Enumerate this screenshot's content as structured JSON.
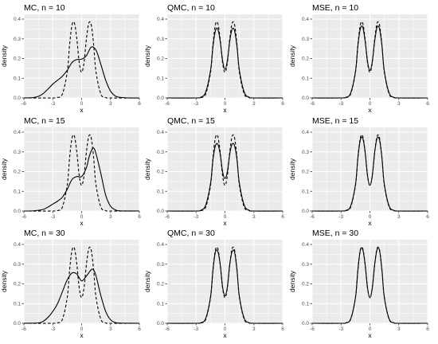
{
  "figure": {
    "background_color": "#ffffff",
    "panel_color": "#ebebeb",
    "grid_color": "#ffffff",
    "line_color": "#000000"
  },
  "chart_data": [
    {
      "type": "line",
      "title": "MC, n = 10",
      "xlabel": "x",
      "ylabel": "density",
      "xlim": [
        -6,
        6
      ],
      "ylim": [
        0,
        0.4
      ],
      "x_ticks": [
        -6,
        -3,
        0,
        3,
        6
      ],
      "y_ticks": [
        0.0,
        0.1,
        0.2,
        0.3,
        0.4
      ],
      "grid": true,
      "series": [
        {
          "style": "solid",
          "x": [
            -6,
            -5,
            -4.5,
            -4,
            -3.5,
            -3,
            -2.5,
            -2,
            -1.5,
            -1,
            -0.5,
            0,
            0.5,
            1,
            1.5,
            2,
            2.5,
            3,
            3.5,
            4,
            5,
            6
          ],
          "y": [
            0,
            0.002,
            0.008,
            0.022,
            0.045,
            0.07,
            0.09,
            0.11,
            0.14,
            0.18,
            0.195,
            0.197,
            0.215,
            0.258,
            0.242,
            0.17,
            0.09,
            0.035,
            0.01,
            0.003,
            0,
            0
          ]
        },
        {
          "style": "dashed",
          "x": [
            -6,
            -3,
            -2.5,
            -2,
            -1.5,
            -1.25,
            -1,
            -0.75,
            -0.5,
            -0.25,
            0,
            0.25,
            0.5,
            0.75,
            1,
            1.25,
            1.5,
            2,
            2.5,
            3,
            6
          ],
          "y": [
            0,
            0,
            0.002,
            0.02,
            0.13,
            0.27,
            0.37,
            0.38,
            0.3,
            0.18,
            0.13,
            0.18,
            0.3,
            0.38,
            0.37,
            0.27,
            0.13,
            0.02,
            0.002,
            0,
            0
          ]
        }
      ]
    },
    {
      "type": "line",
      "title": "QMC, n = 10",
      "xlabel": "x",
      "ylabel": "density",
      "xlim": [
        -6,
        6
      ],
      "ylim": [
        0,
        0.4
      ],
      "x_ticks": [
        -6,
        -3,
        0,
        3,
        6
      ],
      "y_ticks": [
        0.0,
        0.1,
        0.2,
        0.3,
        0.4
      ],
      "grid": true,
      "series": [
        {
          "style": "solid",
          "x": [
            -6,
            -3,
            -2.5,
            -2,
            -1.5,
            -1.25,
            -1,
            -0.75,
            -0.5,
            -0.25,
            0,
            0.25,
            0.5,
            0.75,
            1,
            1.25,
            1.5,
            2,
            2.5,
            3,
            6
          ],
          "y": [
            0,
            0,
            0.004,
            0.03,
            0.14,
            0.26,
            0.34,
            0.35,
            0.29,
            0.19,
            0.145,
            0.19,
            0.29,
            0.35,
            0.34,
            0.26,
            0.14,
            0.03,
            0.004,
            0,
            0
          ]
        },
        {
          "style": "dashed",
          "x": [
            -6,
            -3,
            -2.5,
            -2,
            -1.5,
            -1.25,
            -1,
            -0.75,
            -0.5,
            -0.25,
            0,
            0.25,
            0.5,
            0.75,
            1,
            1.25,
            1.5,
            2,
            2.5,
            3,
            6
          ],
          "y": [
            0,
            0,
            0.002,
            0.02,
            0.13,
            0.27,
            0.37,
            0.38,
            0.3,
            0.18,
            0.13,
            0.18,
            0.3,
            0.38,
            0.37,
            0.27,
            0.13,
            0.02,
            0.002,
            0,
            0
          ]
        }
      ]
    },
    {
      "type": "line",
      "title": "MSE, n = 10",
      "xlabel": "x",
      "ylabel": "density",
      "xlim": [
        -6,
        6
      ],
      "ylim": [
        0,
        0.4
      ],
      "x_ticks": [
        -6,
        -3,
        0,
        3,
        6
      ],
      "y_ticks": [
        0.0,
        0.1,
        0.2,
        0.3,
        0.4
      ],
      "grid": true,
      "series": [
        {
          "style": "solid",
          "x": [
            -6,
            -3,
            -2.5,
            -2,
            -1.5,
            -1.25,
            -1,
            -0.75,
            -0.5,
            -0.25,
            0,
            0.25,
            0.5,
            0.75,
            1,
            1.25,
            1.5,
            2,
            2.5,
            3,
            6
          ],
          "y": [
            0,
            0,
            0.003,
            0.025,
            0.135,
            0.265,
            0.35,
            0.36,
            0.29,
            0.185,
            0.14,
            0.185,
            0.29,
            0.36,
            0.35,
            0.265,
            0.135,
            0.025,
            0.003,
            0,
            0
          ]
        },
        {
          "style": "dashed",
          "x": [
            -6,
            -3,
            -2.5,
            -2,
            -1.5,
            -1.25,
            -1,
            -0.75,
            -0.5,
            -0.25,
            0,
            0.25,
            0.5,
            0.75,
            1,
            1.25,
            1.5,
            2,
            2.5,
            3,
            6
          ],
          "y": [
            0,
            0,
            0.002,
            0.02,
            0.13,
            0.27,
            0.37,
            0.38,
            0.3,
            0.18,
            0.13,
            0.18,
            0.3,
            0.38,
            0.37,
            0.27,
            0.13,
            0.02,
            0.002,
            0,
            0
          ]
        }
      ]
    },
    {
      "type": "line",
      "title": "MC, n = 15",
      "xlabel": "x",
      "ylabel": "density",
      "xlim": [
        -6,
        6
      ],
      "ylim": [
        0,
        0.4
      ],
      "x_ticks": [
        -6,
        -3,
        0,
        3,
        6
      ],
      "y_ticks": [
        0.0,
        0.1,
        0.2,
        0.3,
        0.4
      ],
      "grid": true,
      "series": [
        {
          "style": "solid",
          "x": [
            -6,
            -5,
            -4,
            -3.5,
            -3,
            -2.5,
            -2,
            -1.5,
            -1,
            -0.5,
            0,
            0.5,
            0.75,
            1,
            1.25,
            1.5,
            2,
            2.5,
            3,
            3.5,
            4,
            6
          ],
          "y": [
            0,
            0.001,
            0.008,
            0.02,
            0.035,
            0.05,
            0.07,
            0.11,
            0.16,
            0.175,
            0.175,
            0.22,
            0.27,
            0.305,
            0.32,
            0.29,
            0.19,
            0.08,
            0.025,
            0.006,
            0.001,
            0
          ]
        },
        {
          "style": "dashed",
          "x": [
            -6,
            -3,
            -2.5,
            -2,
            -1.5,
            -1.25,
            -1,
            -0.75,
            -0.5,
            -0.25,
            0,
            0.25,
            0.5,
            0.75,
            1,
            1.25,
            1.5,
            2,
            2.5,
            3,
            6
          ],
          "y": [
            0,
            0,
            0.002,
            0.02,
            0.13,
            0.27,
            0.37,
            0.38,
            0.3,
            0.18,
            0.13,
            0.18,
            0.3,
            0.38,
            0.37,
            0.27,
            0.13,
            0.02,
            0.002,
            0,
            0
          ]
        }
      ]
    },
    {
      "type": "line",
      "title": "QMC, n = 15",
      "xlabel": "x",
      "ylabel": "density",
      "xlim": [
        -6,
        6
      ],
      "ylim": [
        0,
        0.4
      ],
      "x_ticks": [
        -6,
        -3,
        0,
        3,
        6
      ],
      "y_ticks": [
        0.0,
        0.1,
        0.2,
        0.3,
        0.4
      ],
      "grid": true,
      "series": [
        {
          "style": "solid",
          "x": [
            -6,
            -3,
            -2.5,
            -2,
            -1.5,
            -1.25,
            -1,
            -0.75,
            -0.5,
            -0.25,
            0,
            0.25,
            0.5,
            0.75,
            1,
            1.25,
            1.5,
            2,
            2.5,
            3,
            6
          ],
          "y": [
            0,
            0,
            0.004,
            0.03,
            0.14,
            0.26,
            0.33,
            0.34,
            0.29,
            0.2,
            0.165,
            0.2,
            0.29,
            0.34,
            0.33,
            0.26,
            0.14,
            0.03,
            0.004,
            0,
            0
          ]
        },
        {
          "style": "dashed",
          "x": [
            -6,
            -3,
            -2.5,
            -2,
            -1.5,
            -1.25,
            -1,
            -0.75,
            -0.5,
            -0.25,
            0,
            0.25,
            0.5,
            0.75,
            1,
            1.25,
            1.5,
            2,
            2.5,
            3,
            6
          ],
          "y": [
            0,
            0,
            0.002,
            0.02,
            0.13,
            0.27,
            0.37,
            0.38,
            0.3,
            0.18,
            0.13,
            0.18,
            0.3,
            0.38,
            0.37,
            0.27,
            0.13,
            0.02,
            0.002,
            0,
            0
          ]
        }
      ]
    },
    {
      "type": "line",
      "title": "MSE, n = 15",
      "xlabel": "x",
      "ylabel": "density",
      "xlim": [
        -6,
        6
      ],
      "ylim": [
        0,
        0.4
      ],
      "x_ticks": [
        -6,
        -3,
        0,
        3,
        6
      ],
      "y_ticks": [
        0.0,
        0.1,
        0.2,
        0.3,
        0.4
      ],
      "grid": true,
      "series": [
        {
          "style": "solid",
          "x": [
            -6,
            -3,
            -2.5,
            -2,
            -1.5,
            -1.25,
            -1,
            -0.75,
            -0.5,
            -0.25,
            0,
            0.25,
            0.5,
            0.75,
            1,
            1.25,
            1.5,
            2,
            2.5,
            3,
            6
          ],
          "y": [
            0,
            0,
            0.003,
            0.025,
            0.135,
            0.27,
            0.36,
            0.37,
            0.3,
            0.18,
            0.13,
            0.18,
            0.3,
            0.37,
            0.36,
            0.27,
            0.135,
            0.025,
            0.003,
            0,
            0
          ]
        },
        {
          "style": "dashed",
          "x": [
            -6,
            -3,
            -2.5,
            -2,
            -1.5,
            -1.25,
            -1,
            -0.75,
            -0.5,
            -0.25,
            0,
            0.25,
            0.5,
            0.75,
            1,
            1.25,
            1.5,
            2,
            2.5,
            3,
            6
          ],
          "y": [
            0,
            0,
            0.002,
            0.02,
            0.13,
            0.27,
            0.37,
            0.38,
            0.3,
            0.18,
            0.13,
            0.18,
            0.3,
            0.38,
            0.37,
            0.27,
            0.13,
            0.02,
            0.002,
            0,
            0
          ]
        }
      ]
    },
    {
      "type": "line",
      "title": "MC, n = 30",
      "xlabel": "x",
      "ylabel": "density",
      "xlim": [
        -6,
        6
      ],
      "ylim": [
        0,
        0.4
      ],
      "x_ticks": [
        -6,
        -3,
        0,
        3,
        6
      ],
      "y_ticks": [
        0.0,
        0.1,
        0.2,
        0.3,
        0.4
      ],
      "grid": true,
      "series": [
        {
          "style": "solid",
          "x": [
            -6,
            -4.5,
            -4,
            -3.5,
            -3,
            -2.5,
            -2,
            -1.5,
            -1,
            -0.5,
            0,
            0.5,
            1,
            1.25,
            1.5,
            2,
            2.5,
            3,
            3.5,
            4,
            6
          ],
          "y": [
            0,
            0.002,
            0.01,
            0.03,
            0.06,
            0.1,
            0.16,
            0.22,
            0.255,
            0.25,
            0.215,
            0.24,
            0.272,
            0.27,
            0.24,
            0.14,
            0.06,
            0.018,
            0.004,
            0.001,
            0
          ]
        },
        {
          "style": "dashed",
          "x": [
            -6,
            -3,
            -2.5,
            -2,
            -1.5,
            -1.25,
            -1,
            -0.75,
            -0.5,
            -0.25,
            0,
            0.25,
            0.5,
            0.75,
            1,
            1.25,
            1.5,
            2,
            2.5,
            3,
            6
          ],
          "y": [
            0,
            0,
            0.002,
            0.02,
            0.13,
            0.27,
            0.37,
            0.38,
            0.3,
            0.18,
            0.13,
            0.18,
            0.3,
            0.38,
            0.37,
            0.27,
            0.13,
            0.02,
            0.002,
            0,
            0
          ]
        }
      ]
    },
    {
      "type": "line",
      "title": "QMC, n = 30",
      "xlabel": "x",
      "ylabel": "density",
      "xlim": [
        -6,
        6
      ],
      "ylim": [
        0,
        0.4
      ],
      "x_ticks": [
        -6,
        -3,
        0,
        3,
        6
      ],
      "y_ticks": [
        0.0,
        0.1,
        0.2,
        0.3,
        0.4
      ],
      "grid": true,
      "series": [
        {
          "style": "solid",
          "x": [
            -6,
            -3,
            -2.5,
            -2,
            -1.5,
            -1.25,
            -1,
            -0.75,
            -0.5,
            -0.25,
            0,
            0.25,
            0.5,
            0.75,
            1,
            1.25,
            1.5,
            2,
            2.5,
            3,
            6
          ],
          "y": [
            0,
            0,
            0.003,
            0.025,
            0.135,
            0.27,
            0.36,
            0.365,
            0.3,
            0.185,
            0.14,
            0.185,
            0.3,
            0.365,
            0.36,
            0.27,
            0.135,
            0.025,
            0.003,
            0,
            0
          ]
        },
        {
          "style": "dashed",
          "x": [
            -6,
            -3,
            -2.5,
            -2,
            -1.5,
            -1.25,
            -1,
            -0.75,
            -0.5,
            -0.25,
            0,
            0.25,
            0.5,
            0.75,
            1,
            1.25,
            1.5,
            2,
            2.5,
            3,
            6
          ],
          "y": [
            0,
            0,
            0.002,
            0.02,
            0.13,
            0.27,
            0.37,
            0.38,
            0.3,
            0.18,
            0.13,
            0.18,
            0.3,
            0.38,
            0.37,
            0.27,
            0.13,
            0.02,
            0.002,
            0,
            0
          ]
        }
      ]
    },
    {
      "type": "line",
      "title": "MSE, n = 30",
      "xlabel": "x",
      "ylabel": "density",
      "xlim": [
        -6,
        6
      ],
      "ylim": [
        0,
        0.4
      ],
      "x_ticks": [
        -6,
        -3,
        0,
        3,
        6
      ],
      "y_ticks": [
        0.0,
        0.1,
        0.2,
        0.3,
        0.4
      ],
      "grid": true,
      "series": [
        {
          "style": "solid",
          "x": [
            -6,
            -3,
            -2.5,
            -2,
            -1.5,
            -1.25,
            -1,
            -0.75,
            -0.5,
            -0.25,
            0,
            0.25,
            0.5,
            0.75,
            1,
            1.25,
            1.5,
            2,
            2.5,
            3,
            6
          ],
          "y": [
            0,
            0,
            0.002,
            0.022,
            0.132,
            0.27,
            0.37,
            0.375,
            0.3,
            0.18,
            0.13,
            0.18,
            0.3,
            0.375,
            0.37,
            0.27,
            0.132,
            0.022,
            0.002,
            0,
            0
          ]
        },
        {
          "style": "dashed",
          "x": [
            -6,
            -3,
            -2.5,
            -2,
            -1.5,
            -1.25,
            -1,
            -0.75,
            -0.5,
            -0.25,
            0,
            0.25,
            0.5,
            0.75,
            1,
            1.25,
            1.5,
            2,
            2.5,
            3,
            6
          ],
          "y": [
            0,
            0,
            0.002,
            0.02,
            0.13,
            0.27,
            0.37,
            0.38,
            0.3,
            0.18,
            0.13,
            0.18,
            0.3,
            0.38,
            0.37,
            0.27,
            0.13,
            0.02,
            0.002,
            0,
            0
          ]
        }
      ]
    }
  ]
}
